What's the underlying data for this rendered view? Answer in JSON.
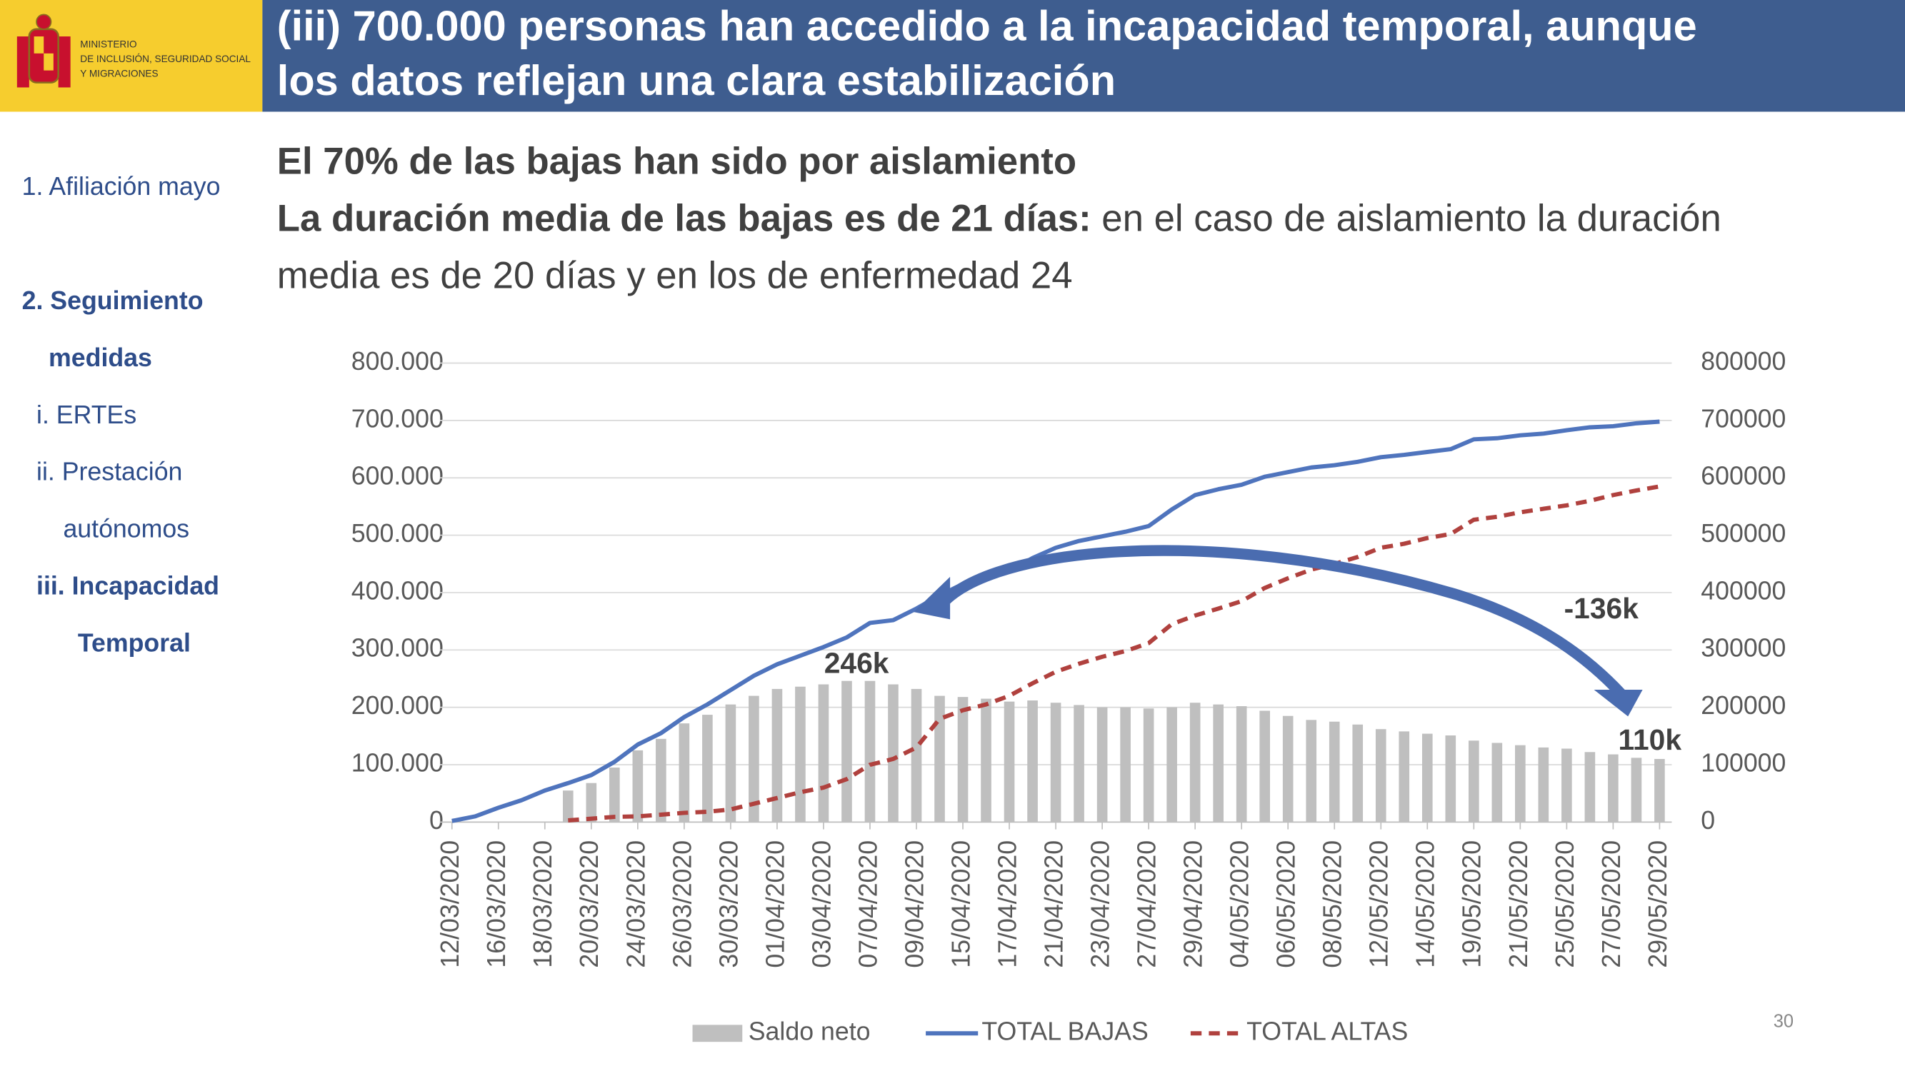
{
  "header": {
    "logo_lines": [
      "MINISTERIO",
      "DE INCLUSIÓN, SEGURIDAD SOCIAL",
      "Y MIGRACIONES"
    ],
    "title_lines": [
      "(iii) 700.000 personas han accedido a la incapacidad temporal, aunque",
      "los datos reflejan una clara estabilización"
    ]
  },
  "nav": [
    "1. Afiliación mayo",
    "2. Seguimiento",
    "medidas",
    "i.  ERTEs",
    "ii.  Prestación",
    "autónomos",
    "iii.  Incapacidad",
    "Temporal"
  ],
  "content": {
    "heading": "El 70% de las bajas han sido por aislamiento",
    "duration_bold": "La duración media de las bajas es de 21 días:",
    "duration_rest": " en el caso de aislamiento la duración",
    "duration_line2": "media es de 20 días y en los de enfermedad 24"
  },
  "page_number": "30",
  "chart_data": {
    "type": "combo",
    "categories": [
      "12/03/2020",
      null,
      "16/03/2020",
      null,
      "18/03/2020",
      null,
      "20/03/2020",
      null,
      "24/03/2020",
      null,
      "26/03/2020",
      null,
      "30/03/2020",
      null,
      "01/04/2020",
      null,
      "03/04/2020",
      null,
      "07/04/2020",
      null,
      "09/04/2020",
      null,
      "15/04/2020",
      null,
      "17/04/2020",
      null,
      "21/04/2020",
      null,
      "23/04/2020",
      null,
      "27/04/2020",
      null,
      "29/04/2020",
      null,
      "04/05/2020",
      null,
      "06/05/2020",
      null,
      "08/05/2020",
      null,
      "12/05/2020",
      null,
      "14/05/2020",
      null,
      "19/05/2020",
      null,
      "21/05/2020",
      null,
      "25/05/2020",
      null,
      "27/05/2020",
      null,
      "29/05/2020"
    ],
    "series": [
      {
        "name": "Saldo neto",
        "type": "bar",
        "color": "#bfbfbf",
        "values": [
          null,
          null,
          null,
          null,
          null,
          55000,
          68000,
          95000,
          125000,
          145000,
          172000,
          187000,
          205000,
          220000,
          232000,
          236000,
          240000,
          246000,
          246000,
          240000,
          232000,
          220000,
          218000,
          215000,
          210000,
          212000,
          208000,
          204000,
          200000,
          200000,
          198000,
          200000,
          208000,
          205000,
          202000,
          194000,
          185000,
          178000,
          175000,
          170000,
          162000,
          158000,
          154000,
          151000,
          142000,
          138000,
          134000,
          130000,
          128000,
          122000,
          118000,
          112000,
          110000
        ]
      },
      {
        "name": "TOTAL BAJAS",
        "type": "line",
        "color": "#4f74bd",
        "line_style": "solid",
        "values": [
          2000,
          10000,
          25000,
          38000,
          55000,
          68000,
          82000,
          105000,
          135000,
          155000,
          183000,
          205000,
          230000,
          255000,
          275000,
          290000,
          305000,
          322000,
          347000,
          352000,
          372000,
          395000,
          415000,
          425000,
          437000,
          460000,
          478000,
          490000,
          498000,
          506000,
          516000,
          545000,
          570000,
          580000,
          588000,
          602000,
          610000,
          618000,
          622000,
          628000,
          636000,
          640000,
          645000,
          650000,
          667000,
          669000,
          674000,
          677000,
          683000,
          688000,
          690000,
          695000,
          698000
        ]
      },
      {
        "name": "TOTAL ALTAS",
        "type": "line",
        "color": "#b0413e",
        "line_style": "dashed",
        "values": [
          null,
          null,
          null,
          null,
          null,
          3000,
          6000,
          9000,
          10000,
          13000,
          16000,
          18000,
          22000,
          32000,
          42000,
          52000,
          60000,
          75000,
          100000,
          110000,
          130000,
          180000,
          195000,
          205000,
          220000,
          242000,
          262000,
          276000,
          288000,
          298000,
          312000,
          345000,
          360000,
          372000,
          385000,
          408000,
          425000,
          440000,
          450000,
          462000,
          478000,
          485000,
          495000,
          502000,
          527000,
          532000,
          540000,
          546000,
          552000,
          560000,
          570000,
          578000,
          585000
        ]
      }
    ],
    "ylim": [
      0,
      800000
    ],
    "yticks": [
      {
        "value": 0,
        "label": "0"
      },
      {
        "value": 100000,
        "label": "100.000"
      },
      {
        "value": 200000,
        "label": "200.000"
      },
      {
        "value": 300000,
        "label": "300.000"
      },
      {
        "value": 400000,
        "label": "400.000"
      },
      {
        "value": 500000,
        "label": "500.000"
      },
      {
        "value": 600000,
        "label": "600.000"
      },
      {
        "value": 700000,
        "label": "700.000"
      },
      {
        "value": 800000,
        "label": "800.000"
      }
    ],
    "y2lim": [
      0,
      800000
    ],
    "y2ticks": [
      0,
      100000,
      200000,
      300000,
      400000,
      500000,
      600000,
      700000,
      800000
    ],
    "grid": true,
    "legend": "bottom",
    "annotations": [
      "246k",
      "-136k",
      "110k"
    ]
  }
}
